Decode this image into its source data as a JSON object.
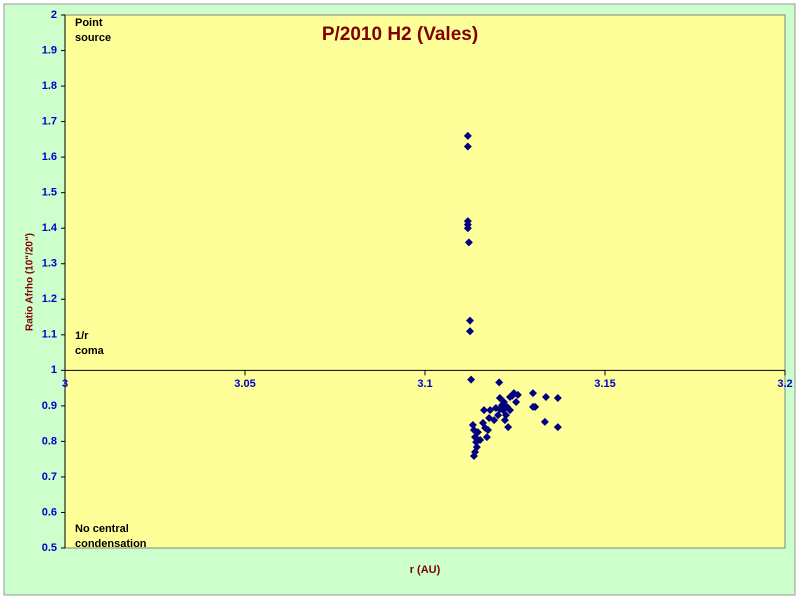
{
  "chart_data": {
    "type": "scatter",
    "title": "P/2010 H2 (Vales)",
    "x_label": "r (AU)",
    "y_label": "Ratio Afrho (10\"/20\")",
    "annotations": [
      [
        "Point",
        "source"
      ],
      [
        "1/r",
        "coma"
      ],
      [
        "No central",
        "condensation"
      ]
    ],
    "x_axis_crosses": 1,
    "xlim": [
      3,
      3.2
    ],
    "xticks": [
      3,
      3.05,
      3.1,
      3.15,
      3.2
    ],
    "ylim": [
      0.5,
      2
    ],
    "yticks": [
      0.5,
      0.6,
      0.7,
      0.8,
      0.9,
      1,
      1.1,
      1.2,
      1.3,
      1.4,
      1.5,
      1.6,
      1.7,
      1.8,
      1.9,
      2
    ],
    "series": [
      {
        "color": "#000080",
        "x": [
          3.1119,
          3.1119,
          3.1119,
          3.1119,
          3.1119,
          3.1122,
          3.1125,
          3.1125,
          3.1128,
          3.1206,
          3.1133,
          3.1136,
          3.1139,
          3.1142,
          3.1144,
          3.1139,
          3.1136,
          3.1147,
          3.1153,
          3.1161,
          3.1167,
          3.1172,
          3.1178,
          3.1181,
          3.1175,
          3.1164,
          3.1192,
          3.1197,
          3.1203,
          3.1208,
          3.1208,
          3.1217,
          3.1219,
          3.1222,
          3.1228,
          3.1231,
          3.1236,
          3.1236,
          3.1242,
          3.1247,
          3.1253,
          3.1258,
          3.1225,
          3.1214,
          3.13,
          3.13,
          3.1306,
          3.1336,
          3.1333,
          3.1369,
          3.1369
        ],
        "values": [
          1.66,
          1.63,
          1.42,
          1.41,
          1.4,
          1.36,
          1.14,
          1.11,
          0.974,
          0.966,
          0.846,
          0.832,
          0.812,
          0.798,
          0.784,
          0.77,
          0.759,
          0.826,
          0.804,
          0.852,
          0.838,
          0.812,
          0.866,
          0.888,
          0.832,
          0.888,
          0.86,
          0.894,
          0.874,
          0.891,
          0.922,
          0.888,
          0.911,
          0.86,
          0.897,
          0.84,
          0.925,
          0.888,
          0.928,
          0.936,
          0.911,
          0.931,
          0.874,
          0.902,
          0.936,
          0.897,
          0.897,
          0.925,
          0.855,
          0.922,
          0.84
        ]
      }
    ]
  }
}
